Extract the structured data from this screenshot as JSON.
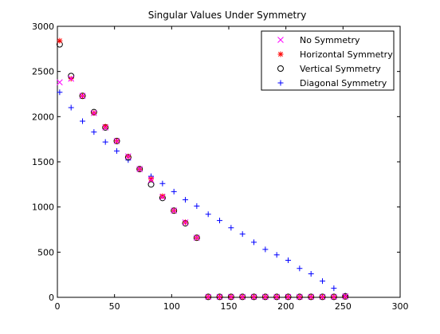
{
  "chart_data": {
    "type": "scatter",
    "title": "Singular Values Under Symmetry",
    "xlabel": "",
    "ylabel": "",
    "xlim": [
      0,
      300
    ],
    "ylim": [
      0,
      3000
    ],
    "xticks": [
      0,
      50,
      100,
      150,
      200,
      250,
      300
    ],
    "yticks": [
      0,
      500,
      1000,
      1500,
      2000,
      2500,
      3000
    ],
    "grid": false,
    "legend_position": "top-right",
    "series": [
      {
        "name": "No Symmetry",
        "marker": "x",
        "color": "#ff00ff",
        "x": [
          2,
          12,
          22,
          32,
          42,
          52,
          62,
          72,
          82,
          92,
          102,
          112,
          122,
          132,
          142,
          152,
          162,
          172,
          182,
          192,
          202,
          212,
          222,
          232,
          242,
          252
        ],
        "y": [
          2380,
          2420,
          2230,
          2040,
          1880,
          1730,
          1560,
          1420,
          1300,
          1110,
          960,
          830,
          660,
          5,
          5,
          5,
          5,
          5,
          5,
          5,
          5,
          5,
          5,
          5,
          5,
          10
        ]
      },
      {
        "name": "Horizontal Symmetry",
        "marker": "*",
        "color": "#ff0000",
        "x": [
          2,
          12,
          22,
          32,
          42,
          52,
          62,
          72,
          82,
          92,
          102,
          112,
          122,
          132,
          142,
          152,
          162,
          172,
          182,
          192,
          202,
          212,
          222,
          232,
          242,
          252
        ],
        "y": [
          2840,
          2420,
          2230,
          2040,
          1890,
          1730,
          1560,
          1420,
          1310,
          1120,
          960,
          830,
          660,
          5,
          5,
          5,
          5,
          5,
          5,
          5,
          5,
          5,
          5,
          5,
          5,
          10
        ]
      },
      {
        "name": "Vertical Symmetry",
        "marker": "o",
        "color": "#000000",
        "x": [
          2,
          12,
          22,
          32,
          42,
          52,
          62,
          72,
          82,
          92,
          102,
          112,
          122,
          132,
          142,
          152,
          162,
          172,
          182,
          192,
          202,
          212,
          222,
          232,
          242,
          252
        ],
        "y": [
          2800,
          2450,
          2230,
          2050,
          1880,
          1730,
          1550,
          1420,
          1250,
          1100,
          960,
          820,
          660,
          5,
          5,
          5,
          5,
          5,
          5,
          5,
          5,
          5,
          5,
          5,
          5,
          10
        ]
      },
      {
        "name": "Diagonal Symmetry",
        "marker": "+",
        "color": "#0000ff",
        "x": [
          2,
          12,
          22,
          32,
          42,
          52,
          62,
          72,
          82,
          92,
          102,
          112,
          122,
          132,
          142,
          152,
          162,
          172,
          182,
          192,
          202,
          212,
          222,
          232,
          242,
          252
        ],
        "y": [
          2270,
          2100,
          1950,
          1830,
          1720,
          1620,
          1520,
          1420,
          1340,
          1260,
          1170,
          1080,
          1010,
          920,
          850,
          770,
          700,
          610,
          530,
          470,
          410,
          320,
          260,
          180,
          100,
          20
        ]
      }
    ]
  }
}
